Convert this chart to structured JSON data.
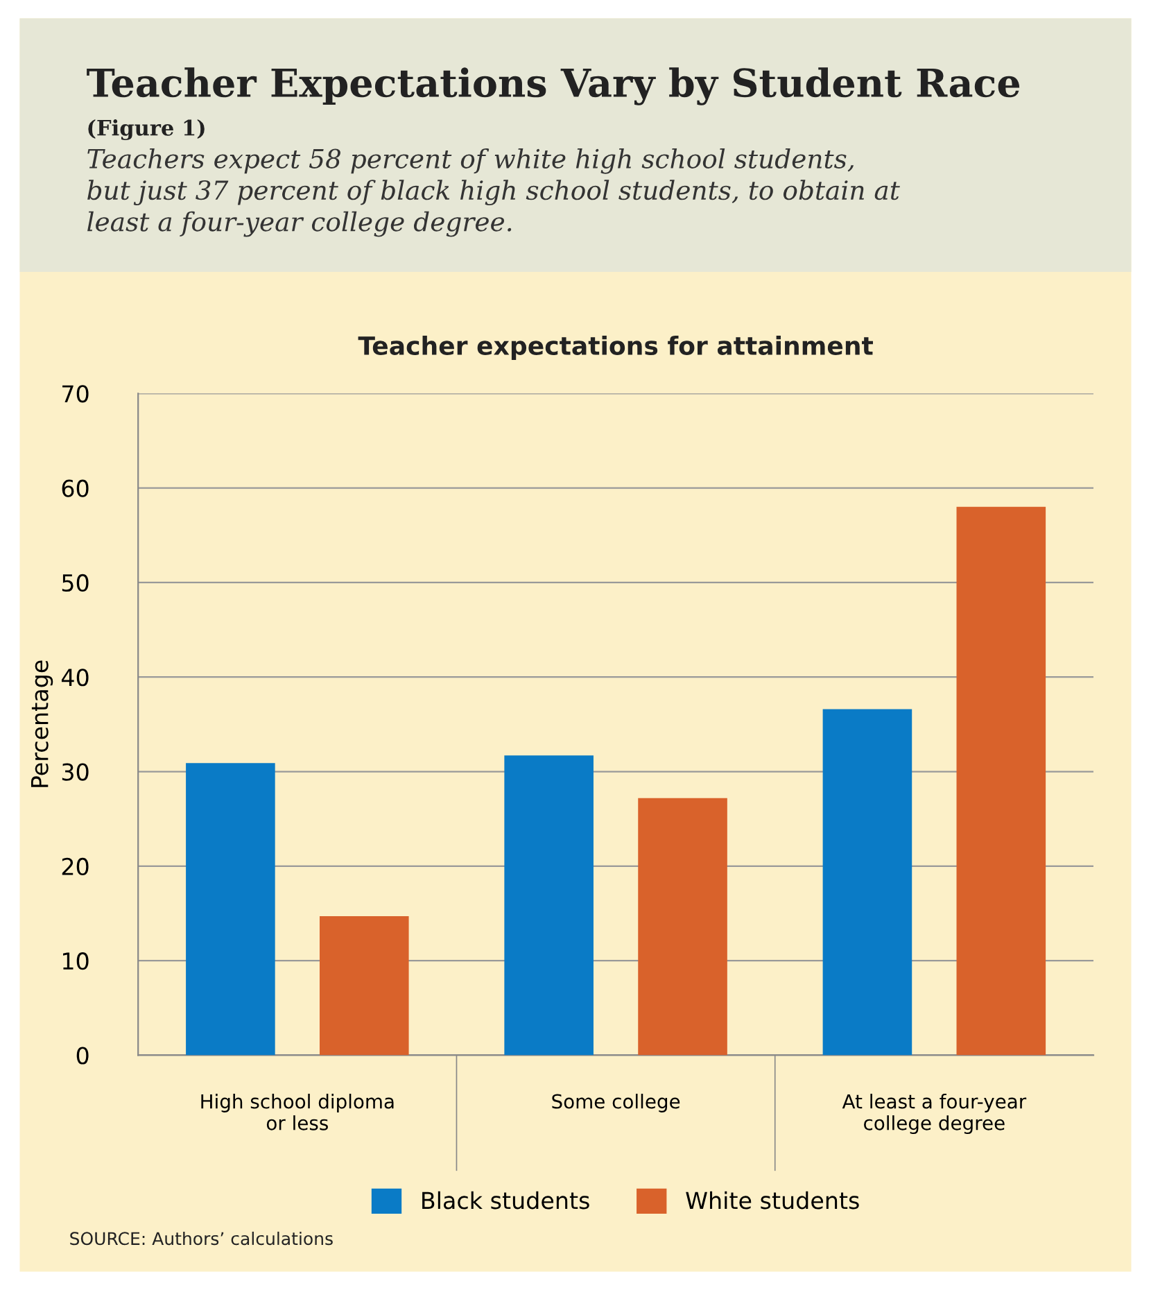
{
  "chart_data": {
    "type": "bar",
    "title": "Teacher Expectations Vary by Student Race",
    "subtitle": "(Figure 1)",
    "annotations": [
      "Teachers expect 58 percent of white high school students,\nbut just 37 percent of black high school students, to obtain at\nleast a four-year college degree.",
      "Teacher expectations for attainment",
      "SOURCE: Authors’ calculations"
    ],
    "ylabel": "Percentage",
    "categories": [
      "High school diploma\nor less",
      "Some college",
      "At least a four-year\ncollege degree"
    ],
    "series": [
      {
        "name": "Black students",
        "color": "#0a7bc6",
        "values": [
          30.9,
          31.7,
          36.6
        ]
      },
      {
        "name": "White students",
        "color": "#d9622b",
        "values": [
          14.7,
          27.2,
          58
        ]
      }
    ],
    "ylim": [
      0,
      70
    ],
    "yticks": [
      0,
      10,
      20,
      30,
      40,
      50,
      60,
      70
    ],
    "grid": "y",
    "legend": "bottom"
  }
}
